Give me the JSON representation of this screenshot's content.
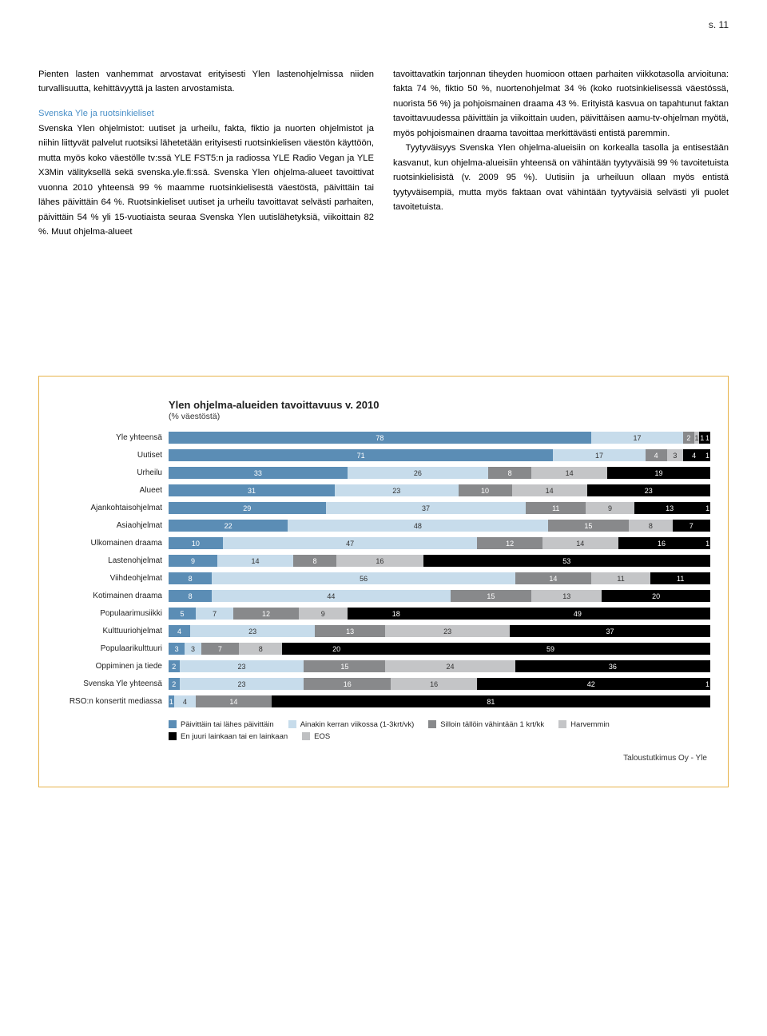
{
  "page_number": "s. 11",
  "col_left": {
    "p1": "Pienten lasten vanhemmat arvostavat erityisesti Ylen lastenohjelmissa niiden turvallisuutta, kehittävyyttä ja lasten arvostamista.",
    "section_title": "Svenska Yle ja ruotsinkieliset",
    "p2": "Svenska Ylen ohjelmistot: uutiset ja urheilu, fakta, fiktio ja nuorten ohjelmistot ja niihin liittyvät palvelut ruotsiksi lähetetään erityisesti ruotsinkielisen väestön käyttöön, mutta myös koko väestölle tv:ssä YLE FST5:n ja radiossa YLE Radio Vegan ja YLE X3Min välityksellä sekä svenska.yle.fi:ssä. Svenska Ylen ohjelma-alueet tavoittivat vuonna 2010 yhteensä 99 % maamme ruotsinkielisestä väestöstä, päivittäin tai lähes päivittäin 64 %. Ruotsinkieliset uutiset ja urheilu tavoittavat selvästi parhaiten, päivittäin 54 % yli 15-vuotiaista seuraa Svenska Ylen uutislähetyksiä, viikoittain 82 %. Muut ohjelma-alueet"
  },
  "col_right": {
    "p1": "tavoittavatkin tarjonnan tiheyden huomioon ottaen parhaiten viikkotasolla arvioituna: fakta 74 %, fiktio 50 %, nuortenohjelmat 34 % (koko ruotsinkielisessä väestössä, nuorista 56 %) ja pohjoismainen draama 43 %. Erityistä kasvua on tapahtunut faktan tavoittavuudessa päivittäin ja viikoittain uuden, päivittäisen aamu-tv-ohjelman myötä, myös pohjoismainen draama tavoittaa merkittävästi entistä paremmin.",
    "p2": "Tyytyväisyys Svenska Ylen ohjelma-alueisiin on korkealla tasolla ja entisestään kasvanut, kun ohjelma-alueisiin yhteensä on vähintään tyytyväisiä 99 % tavoitetuista ruotsinkielisistä (v. 2009 95 %). Uutisiin ja urheiluun ollaan myös entistä tyytyväisempiä, mutta myös faktaan ovat vähintään tyytyväisiä selvästi yli puolet tavoitetuista."
  },
  "chart": {
    "title": "Ylen ohjelma-alueiden tavoittavuus v. 2010",
    "subtitle": "(% väestöstä)",
    "colors": {
      "s1": "#5b8db5",
      "s2": "#c7dceb",
      "s3": "#88898b",
      "s4": "#c4c5c7",
      "s5": "#000000"
    },
    "seg_text_colors": {
      "s1": "#ffffff",
      "s2": "#333333",
      "s3": "#ffffff",
      "s4": "#333333",
      "s5": "#ffffff"
    },
    "rows": [
      {
        "label": "Yle yhteensä",
        "v": [
          78,
          17,
          2,
          1,
          1,
          1
        ]
      },
      {
        "label": "Uutiset",
        "v": [
          71,
          17,
          4,
          3,
          4,
          1
        ]
      },
      {
        "label": "Urheilu",
        "v": [
          33,
          26,
          8,
          14,
          19,
          0
        ]
      },
      {
        "label": "Alueet",
        "v": [
          31,
          23,
          10,
          14,
          23,
          0
        ]
      },
      {
        "label": "Ajankohtaisohjelmat",
        "v": [
          29,
          37,
          11,
          9,
          13,
          1
        ]
      },
      {
        "label": "Asiaohjelmat",
        "v": [
          22,
          48,
          15,
          8,
          7,
          0
        ]
      },
      {
        "label": "Ulkomainen draama",
        "v": [
          10,
          47,
          12,
          14,
          16,
          1
        ]
      },
      {
        "label": "Lastenohjelmat",
        "v": [
          9,
          14,
          8,
          16,
          53,
          0
        ]
      },
      {
        "label": "Viihdeohjelmat",
        "v": [
          8,
          56,
          14,
          11,
          11,
          0
        ]
      },
      {
        "label": "Kotimainen draama",
        "v": [
          8,
          44,
          15,
          13,
          20,
          0
        ]
      },
      {
        "label": "Populaarimusiikki",
        "v": [
          5,
          7,
          12,
          9,
          18,
          49
        ]
      },
      {
        "label": "Kulttuuriohjelmat",
        "v": [
          4,
          23,
          13,
          23,
          37,
          0
        ]
      },
      {
        "label": "Populaarikulttuuri",
        "v": [
          3,
          3,
          7,
          8,
          20,
          59
        ]
      },
      {
        "label": "Oppiminen ja tiede",
        "v": [
          2,
          23,
          15,
          24,
          36,
          0
        ]
      },
      {
        "label": "Svenska Yle yhteensä",
        "v": [
          2,
          23,
          16,
          16,
          42,
          1
        ]
      },
      {
        "label": "RSO:n konsertit mediassa",
        "v": [
          1,
          4,
          14,
          0,
          81,
          0
        ]
      }
    ],
    "legend": [
      {
        "key": "s1",
        "label": "Päivittäin tai lähes päivittäin"
      },
      {
        "key": "s2",
        "label": "Ainakin kerran viikossa (1-3krt/vk)"
      },
      {
        "key": "s3",
        "label": "Silloin tällöin vähintään 1 krt/kk"
      },
      {
        "key": "s4",
        "label": "Harvemmin"
      },
      {
        "key": "s5",
        "label": "En juuri lainkaan tai en lainkaan"
      },
      {
        "key": "eos",
        "label": "EOS"
      }
    ],
    "footer": "Taloustutkimus Oy - Yle"
  }
}
